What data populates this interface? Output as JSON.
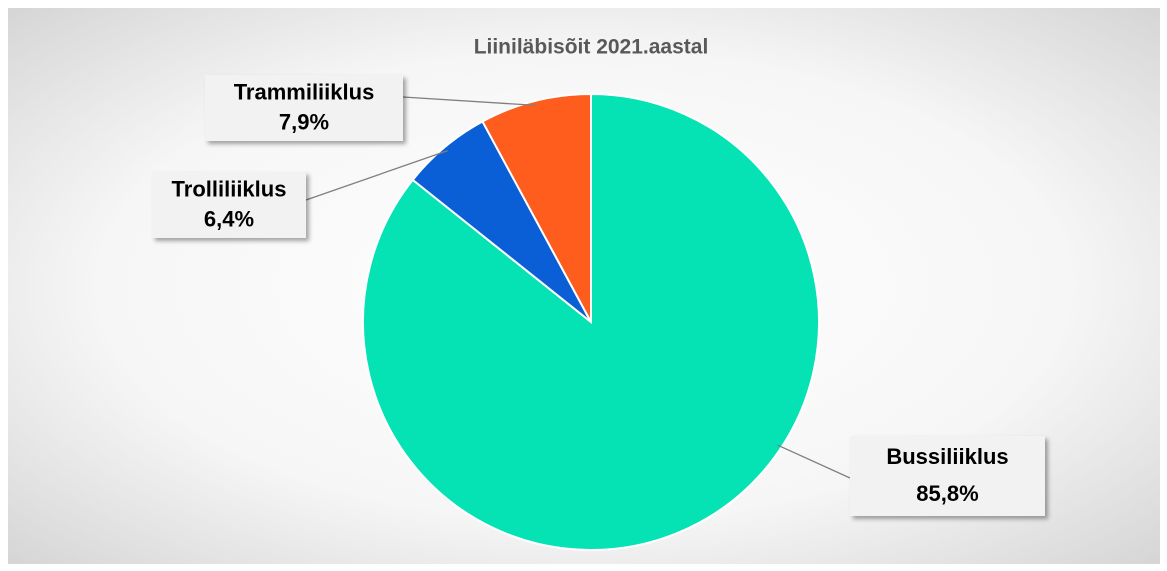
{
  "chart_data": {
    "type": "pie",
    "title": "Liiniläbisõit 2021.aastal",
    "categories": [
      "Bussiliiklus",
      "Trolliliiklus",
      "Trammiliiklus"
    ],
    "values": [
      85.8,
      6.4,
      7.9
    ],
    "value_labels": [
      "85,8%",
      "6,4%",
      "7,9%"
    ],
    "colors": [
      "#05e2b4",
      "#0a5fd6",
      "#fe5d1e"
    ]
  }
}
